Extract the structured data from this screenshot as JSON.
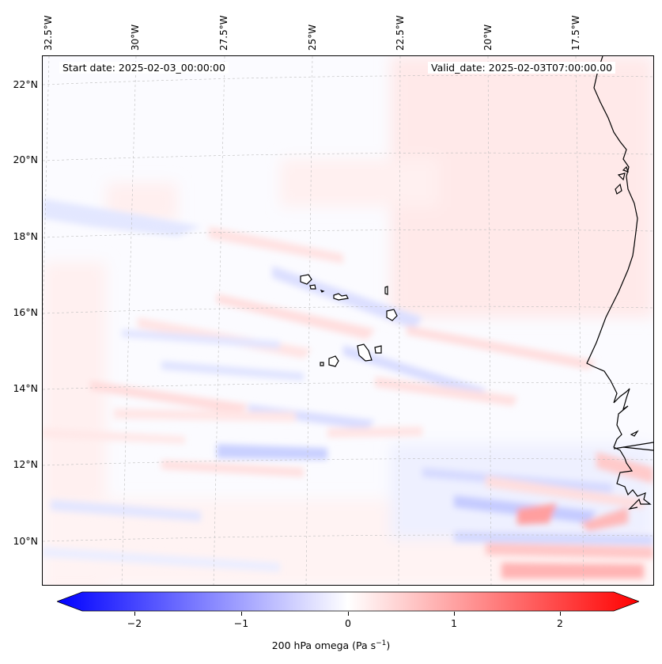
{
  "header": {
    "start_date": "Start date: 2025-02-03_00:00:00",
    "valid_date": "Valid_date: 2025-02-03T07:00:00.00"
  },
  "lon_labels": [
    "32.5°W",
    "30°W",
    "27.5°W",
    "25°W",
    "22.5°W",
    "20°W",
    "17.5°W"
  ],
  "lat_labels": [
    "22°N",
    "20°N",
    "18°N",
    "16°N",
    "14°N",
    "12°N",
    "10°N"
  ],
  "colorbar": {
    "label_main": "200 hPa omega (Pa s",
    "label_exp": "−1",
    "label_close": ")",
    "ticks": [
      "−2",
      "−1",
      "0",
      "1",
      "2"
    ],
    "tick_values": [
      -2,
      -1,
      0,
      1,
      2
    ],
    "range": [
      -2.5,
      2.5
    ],
    "colormap": "bwr",
    "low_color": "#0000ff",
    "mid_color": "#ffffff",
    "high_color": "#ff0000"
  }
}
